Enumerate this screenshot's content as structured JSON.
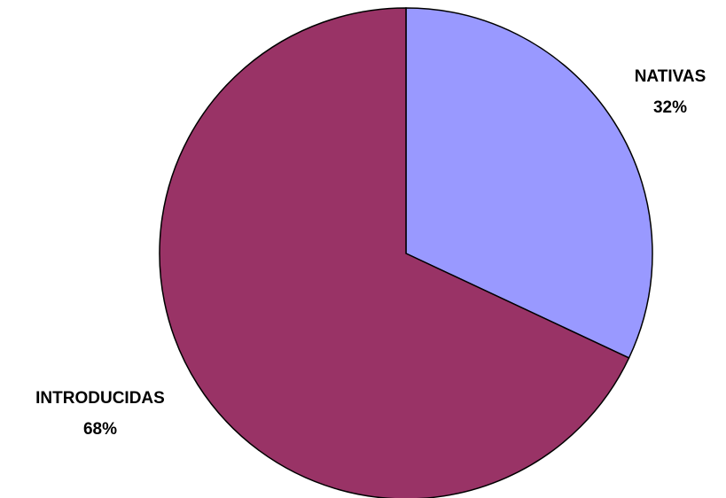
{
  "chart_data": {
    "type": "pie",
    "slices": [
      {
        "label": "NATIVAS",
        "value": 32,
        "value_text": "32%",
        "color": "#9999ff"
      },
      {
        "label": "INTRODUCIDAS",
        "value": 68,
        "value_text": "68%",
        "color": "#993366"
      }
    ],
    "start": "12 o'clock",
    "direction": "clockwise",
    "outline_color": "#000000",
    "legend": "none"
  }
}
